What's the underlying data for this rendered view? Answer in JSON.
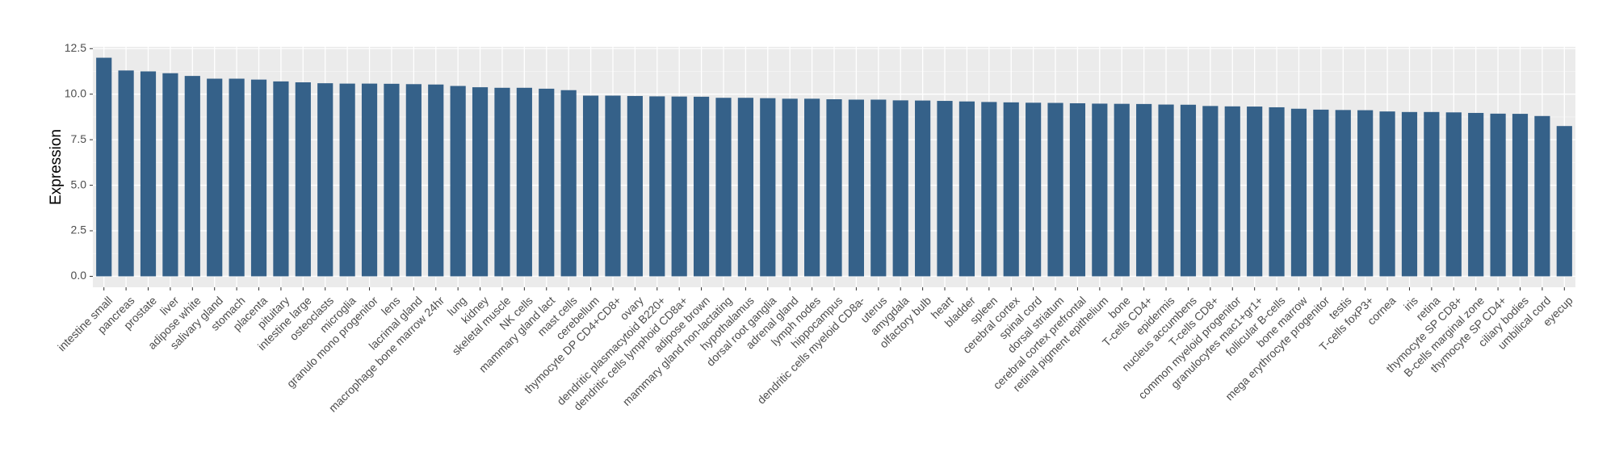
{
  "chart_data": {
    "type": "bar",
    "y_label": "Expression",
    "categories": [
      "intestine small",
      "pancreas",
      "prostate",
      "liver",
      "adipose white",
      "salivary gland",
      "stomach",
      "placenta",
      "pituitary",
      "intestine large",
      "osteoclasts",
      "microglia",
      "granulo mono progenitor",
      "lens",
      "lacrimal gland",
      "macrophage bone marrow 24hr",
      "lung",
      "kidney",
      "skeletal muscle",
      "NK cells",
      "mammary gland  lact",
      "mast cells",
      "cerebellum",
      "thymocyte DP CD4+CD8+",
      "ovary",
      "dendritic plasmacytoid B220+",
      "dendritic cells lymphoid CD8a+",
      "adipose brown",
      "mammary gland non-lactating",
      "hypothalamus",
      "dorsal root ganglia",
      "adrenal gland",
      "lymph nodes",
      "hippocampus",
      "dendritic cells myeloid CD8a-",
      "uterus",
      "amygdala",
      "olfactory bulb",
      "heart",
      "bladder",
      "spleen",
      "cerebral cortex",
      "spinal cord",
      "dorsal striatum",
      "cerebral cortex prefrontal",
      "retinal pigment epithelium",
      "bone",
      "T-cells CD4+",
      "epidermis",
      "nucleus accumbens",
      "T-cells CD8+",
      "common myeloid progenitor",
      "granulocytes mac1+gr1+",
      "follicular B-cells",
      "bone marrow",
      "mega erythrocyte progenitor",
      "testis",
      "T-cells foxP3+",
      "cornea",
      "iris",
      "retina",
      "thymocyte SP CD8+",
      "B-cells marginal zone",
      "thymocyte SP CD4+",
      "ciliary bodies",
      "umbilical cord",
      "eyecup"
    ],
    "values": [
      12.0,
      11.3,
      11.25,
      11.15,
      11.0,
      10.85,
      10.85,
      10.8,
      10.7,
      10.65,
      10.6,
      10.58,
      10.58,
      10.57,
      10.55,
      10.53,
      10.45,
      10.38,
      10.35,
      10.35,
      10.3,
      10.22,
      9.92,
      9.92,
      9.9,
      9.88,
      9.87,
      9.86,
      9.8,
      9.8,
      9.78,
      9.75,
      9.75,
      9.72,
      9.7,
      9.7,
      9.66,
      9.65,
      9.63,
      9.6,
      9.57,
      9.55,
      9.53,
      9.52,
      9.5,
      9.48,
      9.47,
      9.46,
      9.43,
      9.42,
      9.35,
      9.33,
      9.32,
      9.28,
      9.2,
      9.15,
      9.13,
      9.12,
      9.05,
      9.02,
      9.02,
      9.0,
      8.97,
      8.93,
      8.92,
      8.8,
      8.25
    ],
    "color": "#356189",
    "ylim": [
      -0.6,
      12.6
    ],
    "yticks": [
      {
        "value": 0,
        "label": "0.0"
      },
      {
        "value": 2.5,
        "label": "2.5"
      },
      {
        "value": 5,
        "label": "5.0"
      },
      {
        "value": 7.5,
        "label": "7.5"
      },
      {
        "value": 10,
        "label": "10.0"
      },
      {
        "value": 12.5,
        "label": "12.5"
      }
    ],
    "grid": true
  }
}
